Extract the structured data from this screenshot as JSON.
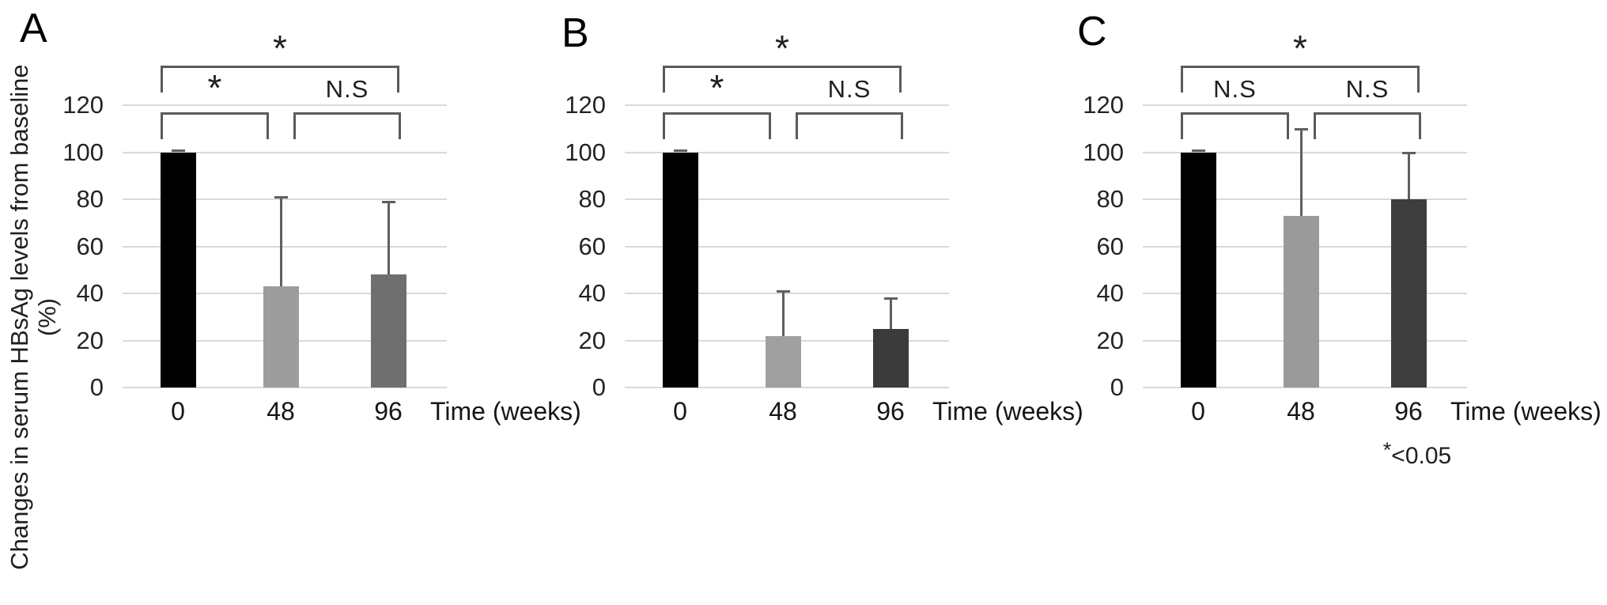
{
  "figure": {
    "y_axis_title_line1": "Changes in serum HBsAg levels from baseline",
    "y_axis_title_line2": "(%)",
    "x_axis_title": "Time (weeks)",
    "significance_note": {
      "symbol": "*",
      "text": "<0.05"
    }
  },
  "colors": {
    "background": "#ffffff",
    "gridline": "#d9d9d9",
    "error_bar": "#5f5f5f",
    "bracket": "#5a5a5a",
    "text": "#1a1a1a"
  },
  "chart_data": [
    {
      "type": "bar",
      "panel_label": "A",
      "categories": [
        "0",
        "48",
        "96"
      ],
      "values": [
        100,
        43,
        48
      ],
      "error_bar_top": [
        101,
        81,
        79
      ],
      "bar_colors": [
        "#000000",
        "#9d9d9d",
        "#6f6f6f"
      ],
      "title": "",
      "xlabel": "Time (weeks)",
      "ylabel": "Changes in serum HBsAg levels from baseline (%)",
      "ylim": [
        0,
        120
      ],
      "yticks": [
        0,
        20,
        40,
        60,
        80,
        100,
        120
      ],
      "grid": true,
      "comparisons": [
        {
          "between": [
            "0",
            "96"
          ],
          "label": "*",
          "level": "outer"
        },
        {
          "between": [
            "0",
            "48"
          ],
          "label": "*",
          "level": "inner"
        },
        {
          "between": [
            "48",
            "96"
          ],
          "label": "N.S",
          "level": "inner"
        }
      ]
    },
    {
      "type": "bar",
      "panel_label": "B",
      "categories": [
        "0",
        "48",
        "96"
      ],
      "values": [
        100,
        22,
        25
      ],
      "error_bar_top": [
        101,
        41,
        38
      ],
      "bar_colors": [
        "#000000",
        "#a0a0a0",
        "#3b3b3b"
      ],
      "title": "",
      "xlabel": "Time (weeks)",
      "ylabel": "Changes in serum HBsAg levels from baseline (%)",
      "ylim": [
        0,
        120
      ],
      "yticks": [
        0,
        20,
        40,
        60,
        80,
        100,
        120
      ],
      "grid": true,
      "comparisons": [
        {
          "between": [
            "0",
            "96"
          ],
          "label": "*",
          "level": "outer"
        },
        {
          "between": [
            "0",
            "48"
          ],
          "label": "*",
          "level": "inner"
        },
        {
          "between": [
            "48",
            "96"
          ],
          "label": "N.S",
          "level": "inner"
        }
      ]
    },
    {
      "type": "bar",
      "panel_label": "C",
      "categories": [
        "0",
        "48",
        "96"
      ],
      "values": [
        100,
        73,
        80
      ],
      "error_bar_top": [
        101,
        110,
        100
      ],
      "bar_colors": [
        "#000000",
        "#9a9a9a",
        "#3e3e3e"
      ],
      "title": "",
      "xlabel": "Time (weeks)",
      "ylabel": "Changes in serum HBsAg levels from baseline (%)",
      "ylim": [
        0,
        120
      ],
      "yticks": [
        0,
        20,
        40,
        60,
        80,
        100,
        120
      ],
      "grid": true,
      "comparisons": [
        {
          "between": [
            "0",
            "96"
          ],
          "label": "*",
          "level": "outer"
        },
        {
          "between": [
            "0",
            "48"
          ],
          "label": "N.S",
          "level": "inner"
        },
        {
          "between": [
            "48",
            "96"
          ],
          "label": "N.S",
          "level": "inner"
        }
      ]
    }
  ]
}
